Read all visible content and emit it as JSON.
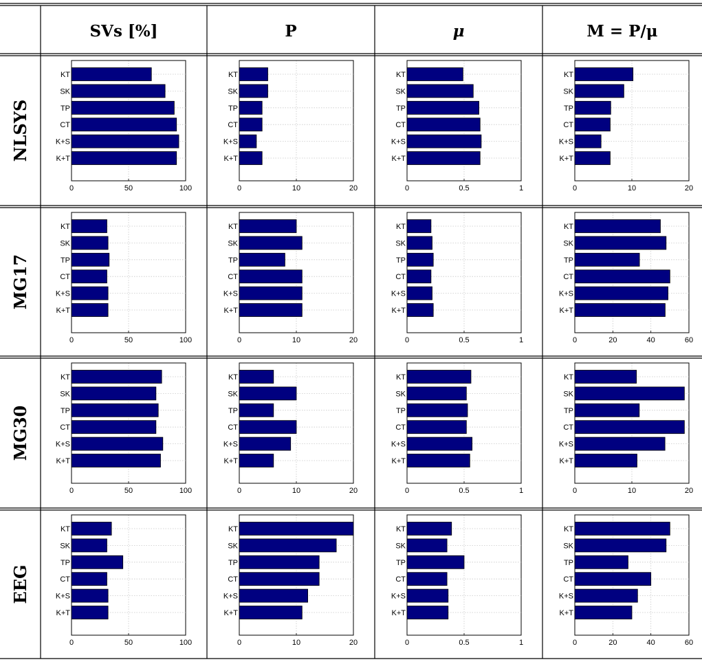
{
  "header": {
    "columns": [
      "SVs [%]",
      "P",
      "μ",
      "M = P/μ"
    ]
  },
  "rows": [
    "NLSYS",
    "MG17",
    "MG30",
    "EEG"
  ],
  "colors": {
    "bar": "#000080",
    "grid": "#c8c8c8",
    "rule": "#000000"
  },
  "chart_data": [
    {
      "type": "bar",
      "orientation": "horizontal",
      "row": "NLSYS",
      "column": "SVs [%]",
      "categories": [
        "KT",
        "SK",
        "TP",
        "CT",
        "K+S",
        "K+T"
      ],
      "values": [
        70,
        82,
        90,
        92,
        94,
        92
      ],
      "xlim": [
        0,
        100
      ],
      "xticks": [
        "0",
        "50",
        "100"
      ],
      "grid": true
    },
    {
      "type": "bar",
      "orientation": "horizontal",
      "row": "NLSYS",
      "column": "P",
      "categories": [
        "KT",
        "SK",
        "TP",
        "CT",
        "K+S",
        "K+T"
      ],
      "values": [
        5,
        5,
        4,
        4,
        3,
        4
      ],
      "xlim": [
        0,
        20
      ],
      "xticks": [
        "0",
        "10",
        "20"
      ],
      "grid": true
    },
    {
      "type": "bar",
      "orientation": "horizontal",
      "row": "NLSYS",
      "column": "μ",
      "categories": [
        "KT",
        "SK",
        "TP",
        "CT",
        "K+S",
        "K+T"
      ],
      "values": [
        0.49,
        0.58,
        0.63,
        0.64,
        0.65,
        0.64
      ],
      "xlim": [
        0,
        1
      ],
      "xticks": [
        "0",
        "0.5",
        "1"
      ],
      "grid": true
    },
    {
      "type": "bar",
      "orientation": "horizontal",
      "row": "NLSYS",
      "column": "M = P/μ",
      "categories": [
        "KT",
        "SK",
        "TP",
        "CT",
        "K+S",
        "K+T"
      ],
      "values": [
        10.2,
        8.6,
        6.3,
        6.2,
        4.6,
        6.2
      ],
      "xlim": [
        0,
        20
      ],
      "xticks": [
        "0",
        "10",
        "20"
      ],
      "grid": true
    },
    {
      "type": "bar",
      "orientation": "horizontal",
      "row": "MG17",
      "column": "SVs [%]",
      "categories": [
        "KT",
        "SK",
        "TP",
        "CT",
        "K+S",
        "K+T"
      ],
      "values": [
        31,
        32,
        33,
        31,
        32,
        32
      ],
      "xlim": [
        0,
        100
      ],
      "xticks": [
        "0",
        "50",
        "100"
      ],
      "grid": true
    },
    {
      "type": "bar",
      "orientation": "horizontal",
      "row": "MG17",
      "column": "P",
      "categories": [
        "KT",
        "SK",
        "TP",
        "CT",
        "K+S",
        "K+T"
      ],
      "values": [
        10,
        11,
        8,
        11,
        11,
        11
      ],
      "xlim": [
        0,
        20
      ],
      "xticks": [
        "0",
        "10",
        "20"
      ],
      "grid": true
    },
    {
      "type": "bar",
      "orientation": "horizontal",
      "row": "MG17",
      "column": "μ",
      "categories": [
        "KT",
        "SK",
        "TP",
        "CT",
        "K+S",
        "K+T"
      ],
      "values": [
        0.21,
        0.22,
        0.23,
        0.21,
        0.22,
        0.23
      ],
      "xlim": [
        0,
        1
      ],
      "xticks": [
        "0",
        "0.5",
        "1"
      ],
      "grid": true
    },
    {
      "type": "bar",
      "orientation": "horizontal",
      "row": "MG17",
      "column": "M = P/μ",
      "categories": [
        "KT",
        "SK",
        "TP",
        "CT",
        "K+S",
        "K+T"
      ],
      "values": [
        45,
        48,
        34,
        50,
        49,
        47.5
      ],
      "xlim": [
        0,
        60
      ],
      "xticks": [
        "0",
        "20",
        "40",
        "60"
      ],
      "grid": true
    },
    {
      "type": "bar",
      "orientation": "horizontal",
      "row": "MG30",
      "column": "SVs [%]",
      "categories": [
        "KT",
        "SK",
        "TP",
        "CT",
        "K+S",
        "K+T"
      ],
      "values": [
        79,
        74,
        76,
        74,
        80,
        78
      ],
      "xlim": [
        0,
        100
      ],
      "xticks": [
        "0",
        "50",
        "100"
      ],
      "grid": true
    },
    {
      "type": "bar",
      "orientation": "horizontal",
      "row": "MG30",
      "column": "P",
      "categories": [
        "KT",
        "SK",
        "TP",
        "CT",
        "K+S",
        "K+T"
      ],
      "values": [
        6,
        10,
        6,
        10,
        9,
        6
      ],
      "xlim": [
        0,
        20
      ],
      "xticks": [
        "0",
        "10",
        "20"
      ],
      "grid": true
    },
    {
      "type": "bar",
      "orientation": "horizontal",
      "row": "MG30",
      "column": "μ",
      "categories": [
        "KT",
        "SK",
        "TP",
        "CT",
        "K+S",
        "K+T"
      ],
      "values": [
        0.56,
        0.52,
        0.53,
        0.52,
        0.57,
        0.55
      ],
      "xlim": [
        0,
        1
      ],
      "xticks": [
        "0",
        "0.5",
        "1"
      ],
      "grid": true
    },
    {
      "type": "bar",
      "orientation": "horizontal",
      "row": "MG30",
      "column": "M = P/μ",
      "categories": [
        "KT",
        "SK",
        "TP",
        "CT",
        "K+S",
        "K+T"
      ],
      "values": [
        10.8,
        19.2,
        11.3,
        19.2,
        15.8,
        10.9
      ],
      "xlim": [
        0,
        20
      ],
      "xticks": [
        "0",
        "10",
        "20"
      ],
      "grid": true
    },
    {
      "type": "bar",
      "orientation": "horizontal",
      "row": "EEG",
      "column": "SVs [%]",
      "categories": [
        "KT",
        "SK",
        "TP",
        "CT",
        "K+S",
        "K+T"
      ],
      "values": [
        35,
        31,
        45,
        31,
        32,
        32
      ],
      "xlim": [
        0,
        100
      ],
      "xticks": [
        "0",
        "50",
        "100"
      ],
      "grid": true
    },
    {
      "type": "bar",
      "orientation": "horizontal",
      "row": "EEG",
      "column": "P",
      "categories": [
        "KT",
        "SK",
        "TP",
        "CT",
        "K+S",
        "K+T"
      ],
      "values": [
        20,
        17,
        14,
        14,
        12,
        11
      ],
      "xlim": [
        0,
        20
      ],
      "xticks": [
        "0",
        "10",
        "20"
      ],
      "grid": true
    },
    {
      "type": "bar",
      "orientation": "horizontal",
      "row": "EEG",
      "column": "μ",
      "categories": [
        "KT",
        "SK",
        "TP",
        "CT",
        "K+S",
        "K+T"
      ],
      "values": [
        0.39,
        0.35,
        0.5,
        0.35,
        0.36,
        0.36
      ],
      "xlim": [
        0,
        1
      ],
      "xticks": [
        "0",
        "0.5",
        "1"
      ],
      "grid": true
    },
    {
      "type": "bar",
      "orientation": "horizontal",
      "row": "EEG",
      "column": "M = P/μ",
      "categories": [
        "KT",
        "SK",
        "TP",
        "CT",
        "K+S",
        "K+T"
      ],
      "values": [
        50,
        48,
        28,
        40,
        33,
        30
      ],
      "xlim": [
        0,
        60
      ],
      "xticks": [
        "0",
        "20",
        "40",
        "60"
      ],
      "grid": true
    }
  ]
}
